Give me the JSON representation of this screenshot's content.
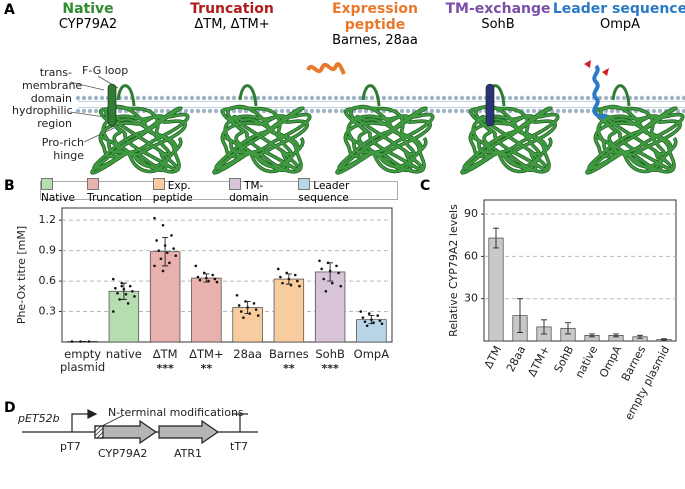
{
  "panel_a": {
    "letter": "A",
    "columns": [
      {
        "title": "Native",
        "subtitle": "CYP79A2",
        "color": "#2e8b2e"
      },
      {
        "title": "Truncation",
        "subtitle": "ΔTM, ΔTM+",
        "color": "#b01c1c"
      },
      {
        "title": "Expression peptide",
        "subtitle": "Barnes, 28aa",
        "color": "#e8792b"
      },
      {
        "title": "TM-exchange",
        "subtitle": "SohB",
        "color": "#7b4fa8"
      },
      {
        "title": "Leader sequence",
        "subtitle": "OmpA",
        "color": "#2a7ac8"
      }
    ],
    "labels": {
      "tm_domain": "trans-\nmembrane\ndomain",
      "fg_loop": "F-G loop",
      "hydrophilic": "hydrophilic\nregion",
      "hinge": "Pro-rich\nhinge"
    }
  },
  "chart_data": [
    {
      "type": "bar",
      "panel": "B",
      "y_label": "Phe-Ox titre [mM]",
      "categories": [
        "empty plasmid",
        "native",
        "ΔTM",
        "ΔTM+",
        "28aa",
        "Barnes",
        "SohB",
        "OmpA"
      ],
      "values": [
        0.005,
        0.5,
        0.89,
        0.63,
        0.34,
        0.62,
        0.69,
        0.22
      ],
      "errors": [
        0,
        0.08,
        0.14,
        0.04,
        0.06,
        0.05,
        0.09,
        0.04
      ],
      "points": [
        [
          0.005,
          0.005,
          0.005
        ],
        [
          0.62,
          0.58,
          0.55,
          0.53,
          0.52,
          0.5,
          0.48,
          0.47,
          0.45,
          0.42,
          0.38,
          0.3,
          0.55
        ],
        [
          1.22,
          1.15,
          1.05,
          1.0,
          0.95,
          0.92,
          0.9,
          0.88,
          0.85,
          0.82,
          0.78,
          0.75,
          0.7
        ],
        [
          0.75,
          0.68,
          0.66,
          0.64,
          0.63,
          0.62,
          0.61,
          0.6,
          0.59
        ],
        [
          0.46,
          0.4,
          0.38,
          0.36,
          0.34,
          0.32,
          0.3,
          0.28,
          0.26,
          0.24
        ],
        [
          0.72,
          0.68,
          0.66,
          0.64,
          0.62,
          0.6,
          0.58,
          0.56,
          0.55
        ],
        [
          0.8,
          0.78,
          0.75,
          0.72,
          0.7,
          0.68,
          0.62,
          0.58,
          0.55,
          0.5
        ],
        [
          0.3,
          0.28,
          0.26,
          0.24,
          0.22,
          0.21,
          0.2,
          0.19,
          0.18,
          0.16
        ]
      ],
      "groups": [
        null,
        0,
        1,
        1,
        2,
        2,
        3,
        4
      ],
      "legend": [
        {
          "name": "Native",
          "color": "#b5ddb0"
        },
        {
          "name": "Truncation",
          "color": "#e8b1ae"
        },
        {
          "name": "Exp. peptide",
          "color": "#f7cd9f"
        },
        {
          "name": "TM-domain",
          "color": "#d7c4d8"
        },
        {
          "name": "Leader sequence",
          "color": "#b9d6e9"
        }
      ],
      "significance": [
        null,
        null,
        "***",
        "**",
        null,
        "**",
        "***",
        null
      ],
      "ylim": [
        0,
        1.32
      ],
      "yticks": [
        0.3,
        0.6,
        0.9,
        1.2
      ],
      "grid": true
    },
    {
      "type": "bar",
      "panel": "C",
      "y_label": "Relative CYP79A2 levels",
      "categories": [
        "ΔTM",
        "28aa",
        "ΔTM+",
        "SohB",
        "native",
        "OmpA",
        "Barnes",
        "empty plasmid"
      ],
      "values": [
        73,
        18,
        10,
        9,
        4,
        4,
        3,
        1
      ],
      "errors": [
        7,
        12,
        5,
        4,
        1,
        1,
        1,
        0.5
      ],
      "color": "#c8c8c8",
      "ylim": [
        0,
        100
      ],
      "yticks": [
        30,
        60,
        90
      ],
      "grid": true
    }
  ],
  "panel_d": {
    "letter": "D",
    "vector": "pET52b",
    "annotation": "N-terminal modifications",
    "promoter": "pT7",
    "genes": [
      "CYP79A2",
      "ATR1"
    ],
    "terminator": "tT7"
  }
}
